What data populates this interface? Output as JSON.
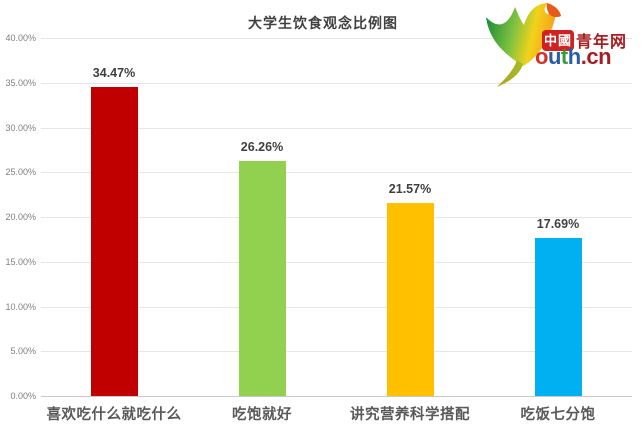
{
  "title": "大学生饮食观念比例图",
  "logo": {
    "badge": "中國",
    "badge_suffix": "青年网",
    "wordmark": [
      {
        "ch": "o",
        "color": "#d93025"
      },
      {
        "ch": "u",
        "color": "#2a5cab"
      },
      {
        "ch": "t",
        "color": "#3b9b35"
      },
      {
        "ch": "h",
        "color": "#2a5cab"
      },
      {
        "ch": ".",
        "color": "#a61e22"
      },
      {
        "ch": "c",
        "color": "#a61e22"
      },
      {
        "ch": "n",
        "color": "#a61e22"
      }
    ]
  },
  "chart_data": {
    "type": "bar",
    "title": "大学生饮食观念比例图",
    "categories": [
      "喜欢吃什么就吃什么",
      "吃饱就好",
      "讲究营养科学搭配",
      "吃饭七分饱"
    ],
    "values": [
      34.47,
      26.26,
      21.57,
      17.69
    ],
    "value_labels": [
      "34.47%",
      "26.26%",
      "21.57%",
      "17.69%"
    ],
    "colors": [
      "#c00000",
      "#92d050",
      "#ffc000",
      "#00b0f0"
    ],
    "xlabel": "",
    "ylabel": "",
    "ylim": [
      0,
      40
    ],
    "ytick_step": 5,
    "ytick_decimals": 2,
    "ytick_suffix": "%",
    "grid": true,
    "legend": false
  }
}
